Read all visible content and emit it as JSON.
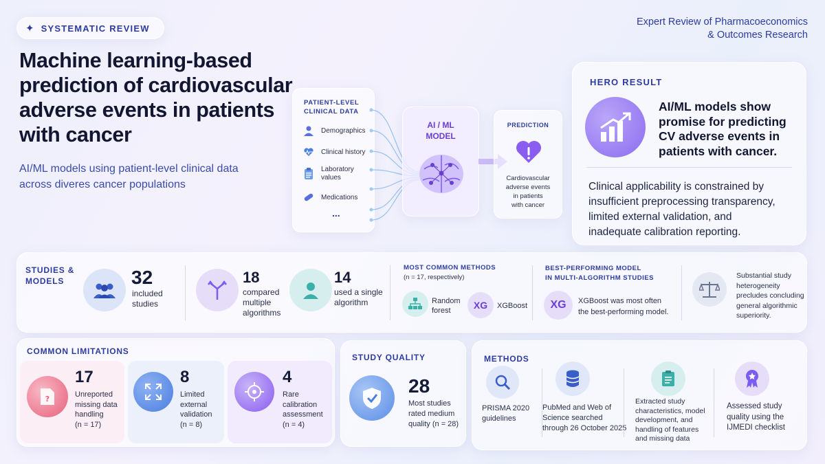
{
  "badge": {
    "label": "SYSTEMATIC REVIEW"
  },
  "journal": {
    "line1": "Expert Review of Pharmacoeconomics",
    "line2": "& Outcomes Research"
  },
  "title": {
    "line1": "Machine learning-based",
    "line2": "prediction of cardiovascular",
    "line3": "adverse events in patients",
    "line4": "with cancer"
  },
  "subtitle": {
    "line1": "AI/ML models using patient-level clinical data",
    "line2": "across diveres cancer populations"
  },
  "diagram": {
    "input_title_1": "PATIENT-LEVEL",
    "input_title_2": "CLINICAL DATA",
    "inputs": [
      "Demographics",
      "Clinical history",
      "Laboratory",
      "values",
      "Medications",
      "..."
    ],
    "model_label_1": "AI / ML",
    "model_label_2": "MODEL",
    "prediction_title": "PREDICTION",
    "prediction_lines": [
      "Cardiovascular",
      "adverse events",
      "in patients",
      "with cancer"
    ]
  },
  "hero": {
    "label": "HERO RESULT",
    "headline": [
      "AI/ML models show",
      "promise for predicting",
      "CV adverse events in",
      "patients with cancer."
    ],
    "body": [
      "Clinical applicability is constrained by",
      "insufficient preprocessing transparency,",
      "limited external validation, and",
      "inadequate calibration reporting."
    ]
  },
  "studies": {
    "label_1": "STUDIES &",
    "label_2": "MODELS",
    "included": {
      "value": "32",
      "text_1": "included",
      "text_2": "studies"
    },
    "compared": {
      "value": "18",
      "text_1": "compared",
      "text_2": "multiple",
      "text_3": "algorithms"
    },
    "single": {
      "value": "14",
      "text_1": "used a single",
      "text_2": "algorithm"
    },
    "methods": {
      "title": "MOST COMMON METHODS",
      "note": "(n = 17, respectively)",
      "rf_1": "Random",
      "rf_2": "forest",
      "xg_icon": "XG",
      "xg": "XGBoost"
    },
    "best": {
      "title_1": "BEST-PERFORMING MODEL",
      "title_2": "IN MULTI-ALGORITHM STUDIES",
      "icon": "XG",
      "text_1": "XGBoost was most often",
      "text_2": "the best-performing model."
    },
    "heterogeneity": [
      "Substantial study",
      "heterogeneity",
      "precludes concluding",
      "general algorithmic",
      "superiority."
    ]
  },
  "limitations": {
    "label": "COMMON LIMITATIONS",
    "items": [
      {
        "value": "17",
        "lines": [
          "Unreported",
          "missing data",
          "handling",
          "(n = 17)"
        ]
      },
      {
        "value": "8",
        "lines": [
          "Limited",
          "external",
          "validation",
          "(n = 8)"
        ]
      },
      {
        "value": "4",
        "lines": [
          "Rare calibration",
          "assessment",
          "(n = 4)"
        ]
      }
    ]
  },
  "quality": {
    "label": "STUDY QUALITY",
    "value": "28",
    "lines": [
      "Most studies",
      "rated medium",
      "quality (n = 28)"
    ]
  },
  "methods_section": {
    "label": "METHODS",
    "items": [
      {
        "lines": [
          "PRISMA 2020",
          "guidelines"
        ]
      },
      {
        "lines": [
          "PubMed and Web of",
          "Science searched",
          "through 26 October 2025"
        ]
      },
      {
        "lines": [
          "Extracted study",
          "characteristics, model",
          "development, and",
          "handling of features",
          "and missing data"
        ]
      },
      {
        "lines": [
          "Assessed study",
          "quality using the",
          "IJMEDI checklist"
        ]
      }
    ]
  },
  "colors": {
    "accent": "#2d3b9e",
    "purple": "#7b5cf0",
    "pink": "#e8607a",
    "blue": "#4a7de0",
    "teal": "#3ab0a8"
  }
}
